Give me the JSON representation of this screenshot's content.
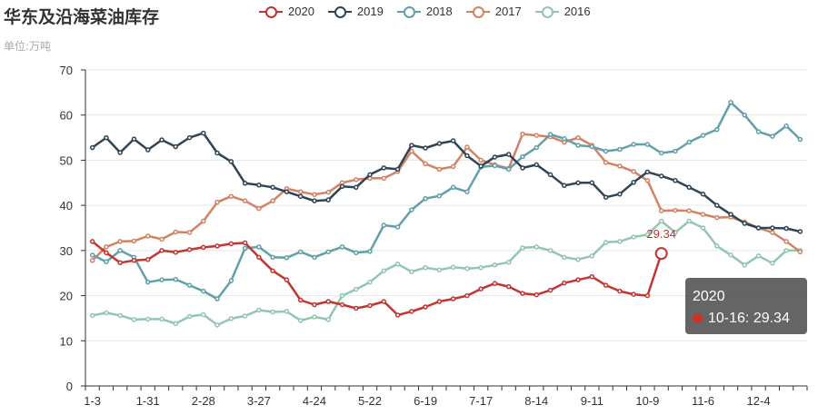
{
  "title": "华东及沿海菜油库存",
  "subtitle": "单位:万吨",
  "tooltip": {
    "series": "2020",
    "date": "10-16",
    "value": "29.34",
    "label": "10-16: 29.34"
  },
  "point_label": "29.34",
  "chart_data": {
    "type": "line",
    "title": "华东及沿海菜油库存",
    "ylabel": "单位:万吨",
    "ylim": [
      0,
      70
    ],
    "yticks": [
      0,
      10,
      20,
      30,
      40,
      50,
      60,
      70
    ],
    "xtick_labels": [
      "1-3",
      "1-31",
      "2-28",
      "3-27",
      "4-24",
      "5-22",
      "6-19",
      "7-17",
      "8-14",
      "9-11",
      "10-9",
      "11-6",
      "12-4"
    ],
    "grid": true,
    "legend_position": "top",
    "series": [
      {
        "name": "2020",
        "color": "#c23531",
        "values": [
          32.0,
          29.5,
          27.3,
          27.8,
          28.0,
          30.0,
          29.6,
          30.2,
          30.7,
          31.0,
          31.5,
          31.7,
          28.5,
          25.5,
          23.5,
          19.0,
          18.0,
          18.7,
          18.0,
          17.2,
          17.8,
          18.7,
          15.7,
          16.5,
          17.5,
          18.7,
          19.3,
          20.0,
          21.5,
          22.7,
          22.0,
          20.5,
          20.2,
          21.2,
          22.8,
          23.5,
          24.2,
          22.3,
          21.0,
          20.3,
          20.0,
          29.34
        ]
      },
      {
        "name": "2019",
        "color": "#2f4554",
        "values": [
          52.8,
          55.0,
          51.7,
          54.7,
          52.3,
          54.5,
          53.0,
          55.0,
          56.0,
          51.6,
          49.7,
          44.9,
          44.5,
          44.0,
          43.0,
          42.0,
          41.0,
          41.2,
          44.2,
          44.0,
          46.8,
          48.3,
          48.0,
          53.3,
          52.7,
          53.7,
          54.3,
          51.0,
          48.7,
          50.7,
          51.3,
          48.3,
          49.0,
          46.8,
          44.4,
          45.0,
          45.0,
          41.8,
          42.5,
          45.1,
          47.4,
          46.5,
          45.5,
          44.0,
          42.5,
          40.0,
          38.0,
          36.0,
          35.0,
          35.0,
          34.9,
          34.2
        ]
      },
      {
        "name": "2018",
        "color": "#61a0a8",
        "values": [
          29.0,
          27.5,
          30.0,
          28.5,
          23.0,
          23.5,
          23.6,
          22.3,
          21.0,
          19.3,
          23.3,
          30.5,
          30.8,
          28.5,
          28.4,
          29.7,
          28.5,
          29.7,
          30.8,
          29.5,
          29.8,
          35.6,
          35.2,
          39.0,
          41.5,
          42.1,
          44.0,
          43.0,
          48.5,
          48.8,
          48.0,
          50.8,
          52.8,
          55.7,
          54.8,
          53.3,
          53.0,
          52.0,
          52.4,
          53.5,
          53.5,
          51.6,
          52.0,
          54.0,
          55.5,
          56.8,
          62.8,
          60.0,
          56.3,
          55.3,
          57.6,
          54.6
        ]
      },
      {
        "name": "2017",
        "color": "#d48265",
        "values": [
          27.8,
          30.8,
          32.0,
          32.1,
          33.2,
          32.5,
          34.1,
          34.0,
          36.5,
          40.7,
          42.0,
          41.0,
          39.3,
          41.0,
          43.7,
          43.0,
          42.4,
          42.9,
          45.0,
          45.7,
          46.0,
          46.0,
          47.5,
          52.0,
          49.2,
          48.0,
          48.6,
          52.9,
          50.0,
          49.0,
          48.2,
          55.8,
          55.5,
          55.2,
          54.0,
          55.0,
          53.3,
          49.5,
          48.7,
          47.5,
          45.5,
          38.8,
          38.9,
          38.8,
          38.0,
          37.3,
          37.4,
          36.3,
          35.0,
          34.0,
          32.0,
          29.7
        ]
      },
      {
        "name": "2016",
        "color": "#91c7ae",
        "values": [
          15.6,
          16.2,
          15.6,
          14.7,
          14.8,
          14.8,
          13.8,
          15.4,
          15.8,
          13.5,
          14.9,
          15.5,
          16.8,
          16.4,
          16.5,
          14.5,
          15.3,
          14.7,
          20.0,
          21.4,
          23.0,
          25.5,
          27.0,
          25.3,
          26.2,
          25.7,
          26.3,
          26.0,
          26.2,
          26.8,
          27.4,
          30.6,
          30.8,
          30.0,
          28.5,
          28.0,
          28.8,
          31.8,
          32.0,
          33.0,
          33.5,
          36.5,
          34.0,
          36.5,
          35.0,
          31.0,
          29.0,
          26.8,
          28.8,
          27.2,
          30.0,
          30.0
        ]
      }
    ]
  }
}
